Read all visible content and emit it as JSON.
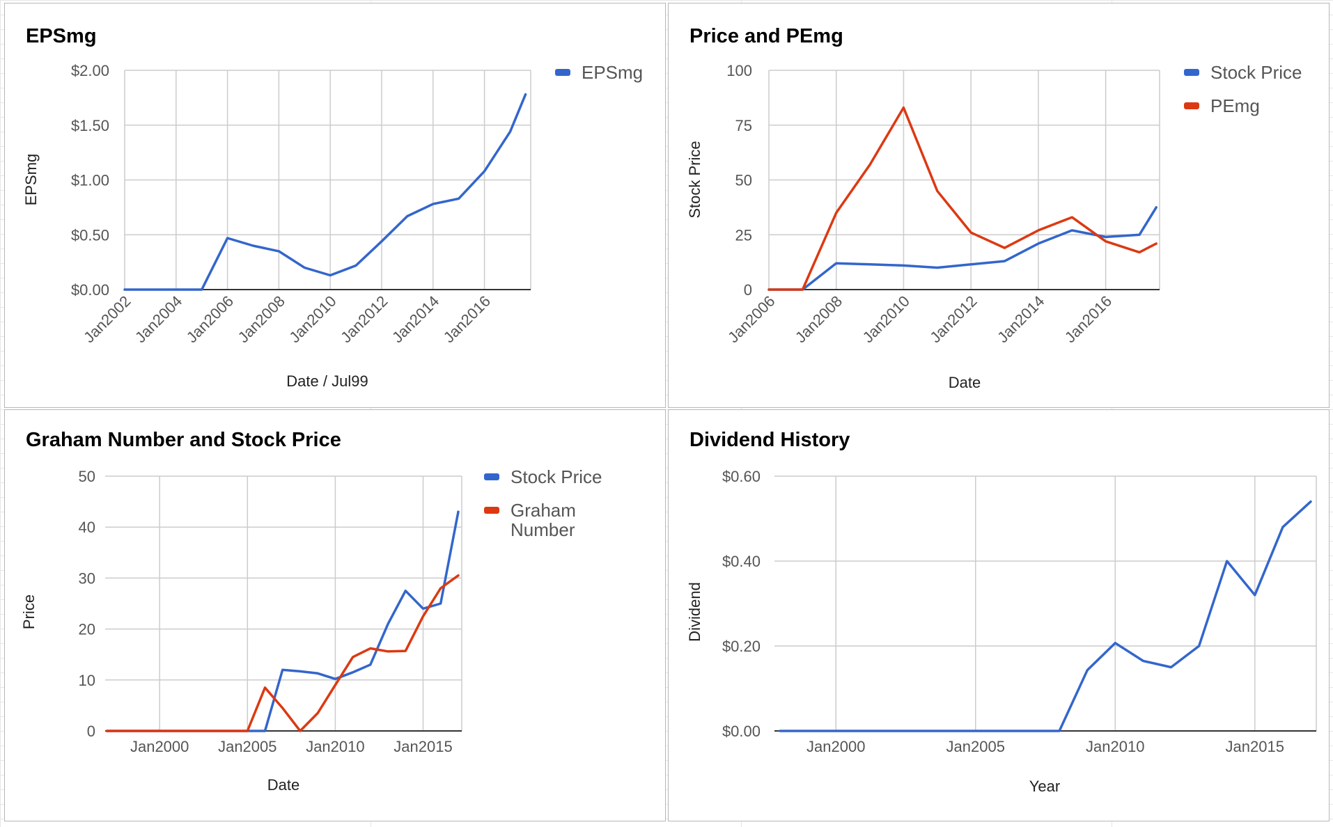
{
  "colors": {
    "blue": "#3366cc",
    "red": "#dc3912"
  },
  "chart_data": [
    {
      "type": "line",
      "title": "EPSmg",
      "xlabel": "Date / Jul99",
      "ylabel": "EPSmg",
      "x_tick_labels": [
        "Jan2002",
        "Jan2004",
        "Jan2006",
        "Jan2008",
        "Jan2010",
        "Jan2012",
        "Jan2014",
        "Jan2016"
      ],
      "y_tick_labels": [
        "$0.00",
        "$0.50",
        "$1.00",
        "$1.50",
        "$2.00"
      ],
      "xlim": [
        2002,
        2017.8
      ],
      "ylim": [
        0,
        2
      ],
      "grid": true,
      "legend_position": "right",
      "series": [
        {
          "name": "EPSmg",
          "color": "#3366cc",
          "x": [
            2002,
            2003,
            2004,
            2005,
            2006,
            2007,
            2008,
            2009,
            2010,
            2011,
            2012,
            2013,
            2014,
            2015,
            2016,
            2017,
            2017.6
          ],
          "y": [
            0,
            0,
            0,
            0,
            0.47,
            0.4,
            0.35,
            0.2,
            0.13,
            0.22,
            0.44,
            0.67,
            0.78,
            0.83,
            1.08,
            1.44,
            1.78
          ]
        }
      ]
    },
    {
      "type": "line",
      "title": "Price and PEmg",
      "xlabel": "Date",
      "ylabel": "Stock Price",
      "x_tick_labels": [
        "Jan2006",
        "Jan2008",
        "Jan2010",
        "Jan2012",
        "Jan2014",
        "Jan2016"
      ],
      "y_tick_labels": [
        "0",
        "25",
        "50",
        "75",
        "100"
      ],
      "xlim": [
        2006,
        2017.6
      ],
      "ylim": [
        0,
        100
      ],
      "grid": true,
      "legend_position": "right",
      "series": [
        {
          "name": "Stock Price",
          "color": "#3366cc",
          "x": [
            2006,
            2007,
            2008,
            2009,
            2010,
            2011,
            2012,
            2013,
            2014,
            2015,
            2016,
            2017,
            2017.5
          ],
          "y": [
            0,
            0,
            12,
            11.5,
            11,
            10,
            11.5,
            13,
            21,
            27,
            24,
            25,
            37.5
          ]
        },
        {
          "name": "PEmg",
          "color": "#dc3912",
          "x": [
            2006,
            2007,
            2008,
            2009,
            2010,
            2011,
            2012,
            2013,
            2014,
            2015,
            2016,
            2017,
            2017.5
          ],
          "y": [
            0,
            0,
            35,
            57,
            83,
            45,
            26,
            19,
            27,
            33,
            22,
            17,
            21
          ]
        }
      ]
    },
    {
      "type": "line",
      "title": "Graham Number and Stock Price",
      "xlabel": "Date",
      "ylabel": "Price",
      "x_tick_labels": [
        "Jan2000",
        "Jan2005",
        "Jan2010",
        "Jan2015"
      ],
      "x_tick_values": [
        2000,
        2005,
        2010,
        2015
      ],
      "y_tick_labels": [
        "0",
        "10",
        "20",
        "30",
        "40",
        "50"
      ],
      "xlim": [
        1996.9,
        2017.2
      ],
      "ylim": [
        0,
        50
      ],
      "grid": true,
      "legend_position": "right",
      "series": [
        {
          "name": "Stock Price",
          "color": "#3366cc",
          "x": [
            1997,
            2006,
            2007,
            2008,
            2009,
            2010,
            2011,
            2012,
            2013,
            2014,
            2015,
            2016,
            2017
          ],
          "y": [
            0,
            0,
            12,
            11.7,
            11.3,
            10.2,
            11.5,
            13,
            21,
            27.5,
            24,
            25,
            43
          ]
        },
        {
          "name": "Graham Number",
          "color": "#dc3912",
          "x": [
            1997,
            2005,
            2006,
            2007,
            2008,
            2009,
            2010,
            2011,
            2012,
            2013,
            2014,
            2015,
            2016,
            2017
          ],
          "y": [
            0,
            0,
            8.5,
            4.5,
            0,
            3.5,
            9,
            14.5,
            16.2,
            15.6,
            15.7,
            22.5,
            28,
            30.5
          ]
        }
      ]
    },
    {
      "type": "line",
      "title": "Dividend History",
      "xlabel": "Year",
      "ylabel": "Dividend",
      "x_tick_labels": [
        "Jan2000",
        "Jan2005",
        "Jan2010",
        "Jan2015"
      ],
      "x_tick_values": [
        2000,
        2005,
        2010,
        2015
      ],
      "y_tick_labels": [
        "$0.00",
        "$0.20",
        "$0.40",
        "$0.60"
      ],
      "xlim": [
        1997.8,
        2017.2
      ],
      "ylim": [
        0,
        0.6
      ],
      "grid": true,
      "legend_position": "none",
      "series": [
        {
          "color": "#3366cc",
          "x": [
            1998,
            2008,
            2009,
            2010,
            2011,
            2012,
            2013,
            2014,
            2015,
            2016,
            2017
          ],
          "y": [
            0,
            0,
            0.143,
            0.207,
            0.165,
            0.15,
            0.2,
            0.4,
            0.32,
            0.48,
            0.54
          ]
        }
      ]
    }
  ]
}
